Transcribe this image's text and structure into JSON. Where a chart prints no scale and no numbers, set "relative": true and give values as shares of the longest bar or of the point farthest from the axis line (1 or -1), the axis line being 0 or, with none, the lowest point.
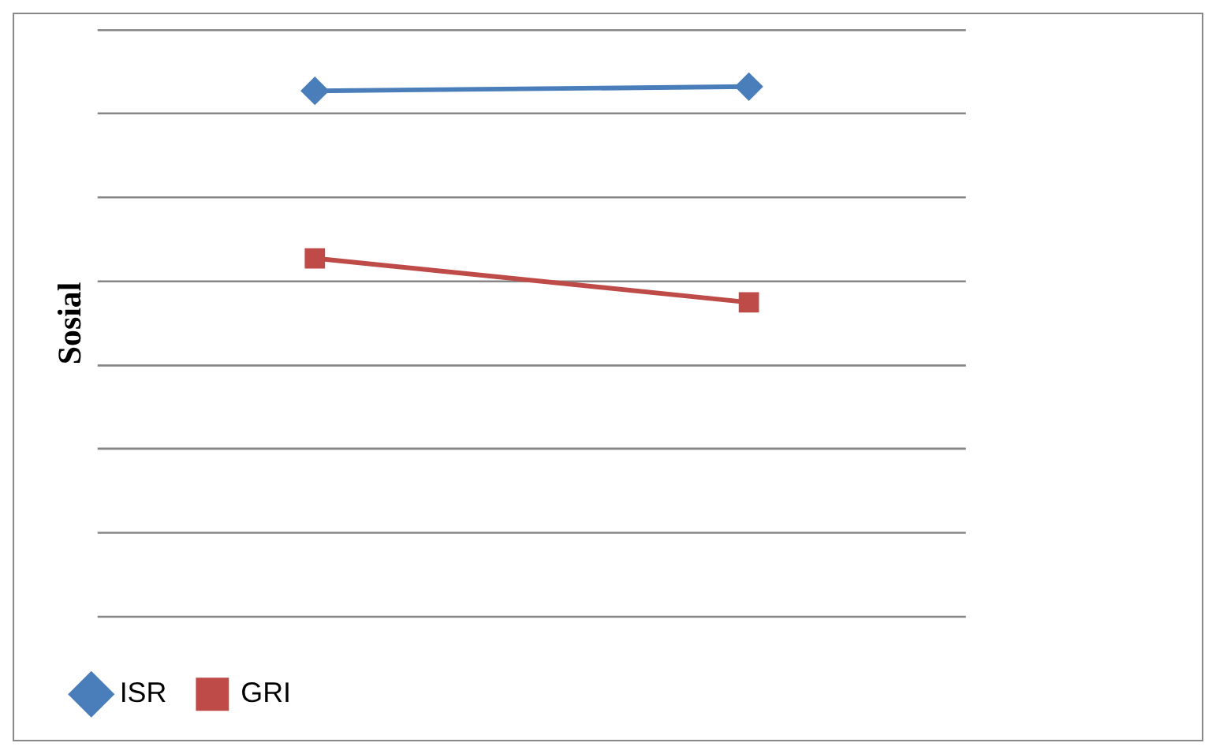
{
  "chart_data": {
    "type": "line",
    "ylabel": "Sosial",
    "categories": [
      null,
      null
    ],
    "relative": true,
    "grid": "y",
    "legend": "bottom left",
    "series": [
      {
        "name": "ISR",
        "color": "#4a7ebb",
        "marker": "diamond",
        "values": [
          0.992,
          1
        ]
      },
      {
        "name": "GRI",
        "color": "#be4b48",
        "marker": "square",
        "values": [
          0.676,
          0.593
        ]
      }
    ]
  }
}
